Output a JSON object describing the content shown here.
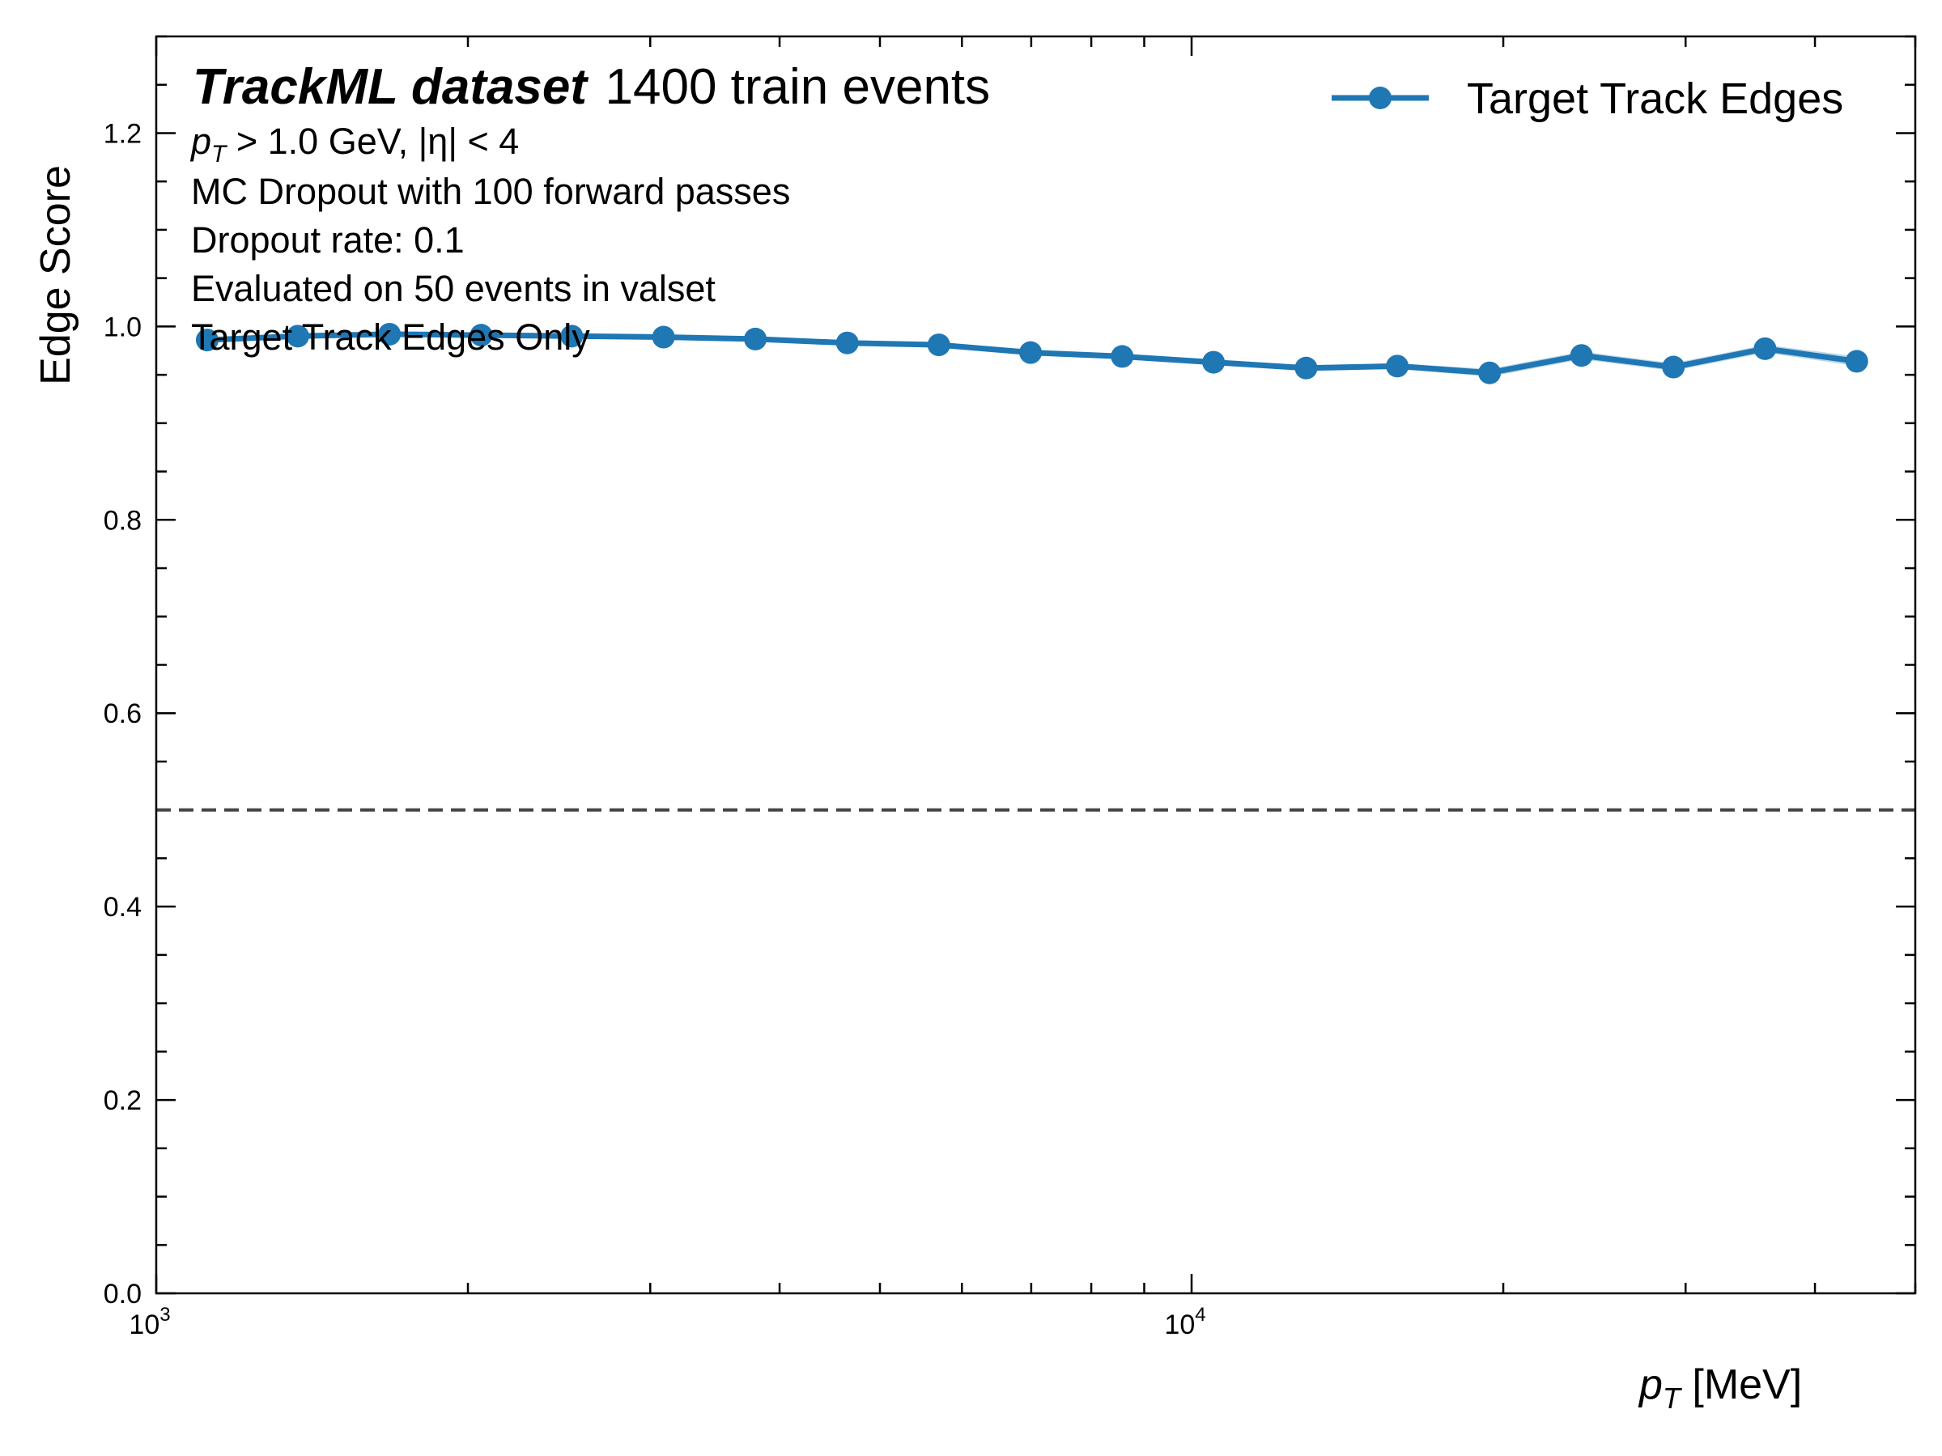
{
  "chart_data": {
    "type": "line",
    "title_bold": "TrackML dataset",
    "title_rest": "1400 train events",
    "annotations": {
      "cut_pt_prefix": "p",
      "cut_pt_sub": "T",
      "cut_pt_rest": " > 1.0 GeV, |η| < 4",
      "line2": "MC Dropout with 100 forward passes",
      "line3": "Dropout rate: 0.1",
      "line4": "Evaluated on 50 events in valset",
      "line5": "Target Track Edges Only"
    },
    "xlabel_main": "p",
    "xlabel_sub": "T",
    "xlabel_unit": " [MeV]",
    "ylabel": "Edge Score",
    "xscale": "log",
    "xlim": [
      1000,
      50000
    ],
    "ylim": [
      0.0,
      1.3
    ],
    "yticks": [
      "0.0",
      "0.2",
      "0.4",
      "0.6",
      "0.8",
      "1.0",
      "1.2"
    ],
    "xtick_major": [
      {
        "base": "10",
        "exp": "3"
      },
      {
        "base": "10",
        "exp": "4"
      }
    ],
    "threshold": 0.5,
    "legend_position": "top-right",
    "series": [
      {
        "name": "Target Track Edges",
        "color": "#1f77b4",
        "x": [
          1120,
          1370,
          1680,
          2060,
          2520,
          3090,
          3790,
          4650,
          5700,
          6990,
          8570,
          10500,
          12900,
          15800,
          19400,
          23800,
          29200,
          35800,
          43900
        ],
        "y": [
          0.986,
          0.99,
          0.992,
          0.991,
          0.99,
          0.989,
          0.987,
          0.983,
          0.981,
          0.973,
          0.969,
          0.963,
          0.957,
          0.959,
          0.952,
          0.97,
          0.958,
          0.977,
          0.964
        ],
        "band_halfwidth": [
          0.002,
          0.002,
          0.002,
          0.002,
          0.002,
          0.002,
          0.002,
          0.002,
          0.002,
          0.003,
          0.003,
          0.003,
          0.003,
          0.003,
          0.004,
          0.004,
          0.004,
          0.004,
          0.005
        ]
      }
    ]
  }
}
